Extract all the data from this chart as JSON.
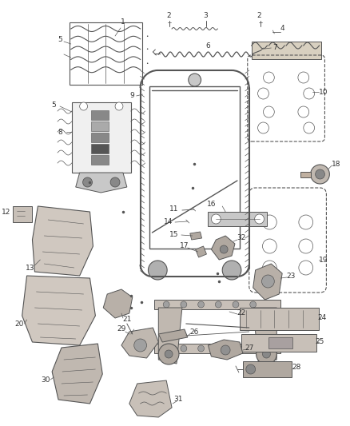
{
  "background_color": "#ffffff",
  "line_color": "#555555",
  "text_color": "#333333",
  "fig_width": 4.38,
  "fig_height": 5.33,
  "dpi": 100,
  "label_fs": 6.5,
  "xlim": [
    0,
    438
  ],
  "ylim": [
    0,
    533
  ]
}
